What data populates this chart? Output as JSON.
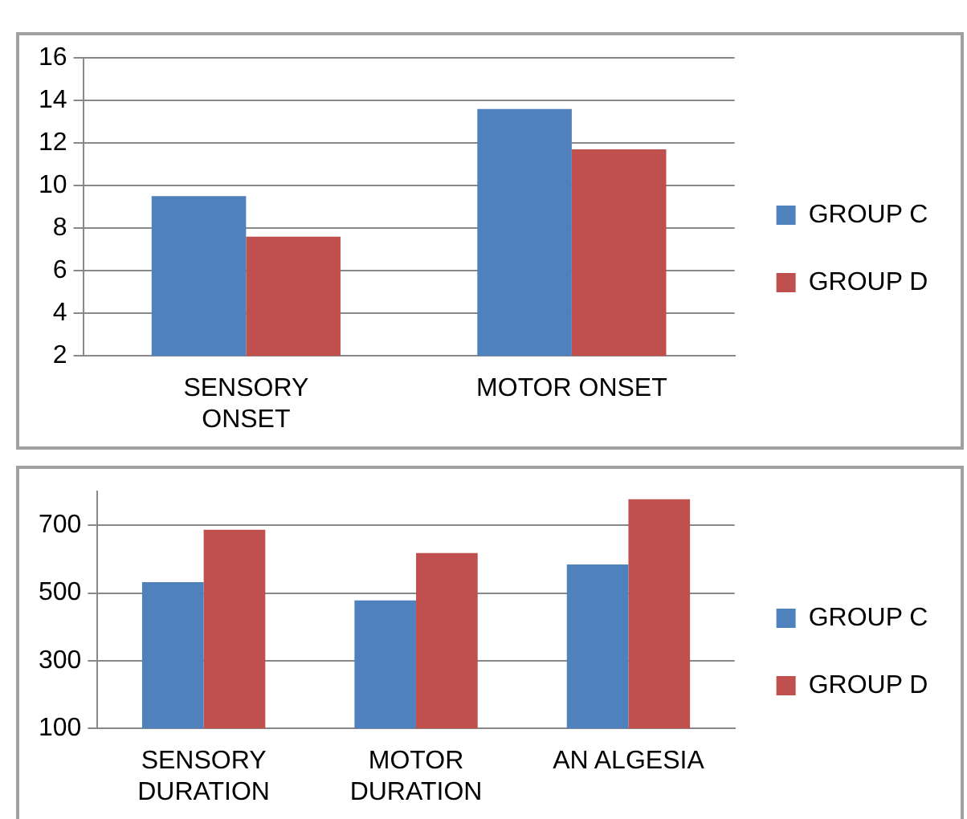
{
  "chart_data": [
    {
      "type": "bar",
      "categories": [
        "SENSORY ONSET",
        "MOTOR ONSET"
      ],
      "series": [
        {
          "name": "GROUP C",
          "color": "#4f81bd",
          "values": [
            9.5,
            13.6
          ]
        },
        {
          "name": "GROUP D",
          "color": "#c0504d",
          "values": [
            7.6,
            11.7
          ]
        }
      ],
      "ylim": [
        2,
        16
      ],
      "yticks": [
        2,
        4,
        6,
        8,
        10,
        12,
        14,
        16
      ],
      "grid": "y",
      "legend": "right"
    },
    {
      "type": "bar",
      "categories": [
        "SENSORY DURATION",
        "MOTOR DURATION",
        "AN ALGESIA"
      ],
      "series": [
        {
          "name": "GROUP C",
          "color": "#4f81bd",
          "values": [
            532,
            478,
            584
          ]
        },
        {
          "name": "GROUP D",
          "color": "#c0504d",
          "values": [
            687,
            618,
            777
          ]
        }
      ],
      "ylim": [
        100,
        800
      ],
      "yticks": [
        100,
        300,
        500,
        700
      ],
      "grid": "y",
      "legend": "right"
    }
  ]
}
